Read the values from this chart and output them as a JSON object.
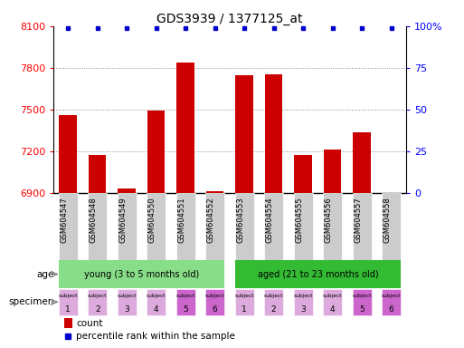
{
  "title": "GDS3939 / 1377125_at",
  "samples": [
    "GSM604547",
    "GSM604548",
    "GSM604549",
    "GSM604550",
    "GSM604551",
    "GSM604552",
    "GSM604553",
    "GSM604554",
    "GSM604555",
    "GSM604556",
    "GSM604557",
    "GSM604558"
  ],
  "counts": [
    7460,
    7175,
    6935,
    7495,
    7840,
    6915,
    7745,
    7755,
    7175,
    7215,
    7335,
    6905
  ],
  "ylim_min": 6900,
  "ylim_max": 8100,
  "yticks_left": [
    6900,
    7200,
    7500,
    7800,
    8100
  ],
  "yticks_right_labels": [
    "0",
    "25",
    "50",
    "75",
    "100%"
  ],
  "yticks_right_pos": [
    6900,
    7200,
    7500,
    7800,
    8100
  ],
  "bar_color": "#cc0000",
  "percentile_color": "#0000cc",
  "age_young_color": "#88dd88",
  "age_aged_color": "#33bb33",
  "age_labels": [
    "young (3 to 5 months old)",
    "aged (21 to 23 months old)"
  ],
  "specimen_color_light": "#ddaadd",
  "specimen_color_dark": "#cc66cc",
  "specimen_dark_indices": [
    4,
    5,
    10,
    11
  ],
  "specimen_numbers": [
    "1",
    "2",
    "3",
    "4",
    "5",
    "6",
    "1",
    "2",
    "3",
    "4",
    "5",
    "6"
  ],
  "grid_color": "#888888",
  "label_left_color": "#888888",
  "xticklabel_bg": "#cccccc",
  "title_fontsize": 10,
  "tick_fontsize": 8,
  "bar_width": 0.6
}
